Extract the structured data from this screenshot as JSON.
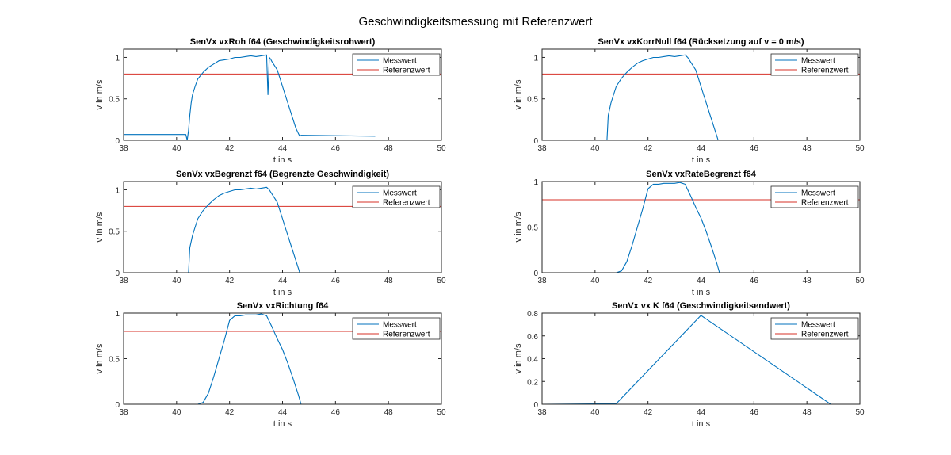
{
  "figure_title": "Geschwindigkeitsmessung mit Referenzwert",
  "colors": {
    "measured": "#0072bd",
    "reference": "#d73027",
    "axis": "#262626"
  },
  "chart_data": [
    {
      "type": "line",
      "title": "SenVx vxRoh f64 (Geschwindigkeitsrohwert)",
      "xlabel": "t in s",
      "ylabel": "v in m/s",
      "xlim": [
        38,
        50
      ],
      "ylim": [
        0,
        1.1
      ],
      "xticks": [
        38,
        40,
        42,
        44,
        46,
        48,
        50
      ],
      "yticks": [
        0,
        0.5,
        1
      ],
      "ytick_labels": [
        "0",
        "0.5",
        "1"
      ],
      "legend": [
        "Messwert",
        "Referenzwert"
      ],
      "legend_position": "top-right",
      "reference_value": 0.8,
      "series": [
        {
          "name": "Messwert",
          "x": [
            38,
            40.35,
            40.4,
            40.45,
            40.5,
            40.55,
            40.6,
            40.7,
            40.8,
            41,
            41.2,
            41.4,
            41.6,
            41.8,
            42,
            42.2,
            42.4,
            42.6,
            42.8,
            43,
            43.2,
            43.4,
            43.45,
            43.5,
            43.55,
            43.6,
            43.7,
            43.8,
            43.9,
            44,
            44.1,
            44.2,
            44.3,
            44.4,
            44.5,
            44.6,
            44.65,
            44.7,
            47.5
          ],
          "y": [
            0.07,
            0.07,
            0.0,
            0.12,
            0.3,
            0.45,
            0.55,
            0.65,
            0.74,
            0.82,
            0.88,
            0.92,
            0.96,
            0.97,
            0.98,
            1.0,
            1.0,
            1.01,
            1.02,
            1.01,
            1.02,
            1.03,
            0.55,
            1.0,
            0.98,
            0.95,
            0.9,
            0.85,
            0.75,
            0.65,
            0.55,
            0.45,
            0.35,
            0.25,
            0.15,
            0.08,
            0.05,
            0.06,
            0.05
          ]
        }
      ]
    },
    {
      "type": "line",
      "title": "SenVx vxKorrNull f64 (Rücksetzung auf v = 0 m/s)",
      "xlabel": "t in s",
      "ylabel": "v in m/s",
      "xlim": [
        38,
        50
      ],
      "ylim": [
        0,
        1.1
      ],
      "xticks": [
        38,
        40,
        42,
        44,
        46,
        48,
        50
      ],
      "yticks": [
        0,
        0.5,
        1
      ],
      "ytick_labels": [
        "0",
        "0.5",
        "1"
      ],
      "legend": [
        "Messwert",
        "Referenzwert"
      ],
      "legend_position": "top-right",
      "reference_value": 0.8,
      "series": [
        {
          "name": "Messwert",
          "x": [
            38,
            40.45,
            40.5,
            40.6,
            40.7,
            40.8,
            41,
            41.2,
            41.4,
            41.6,
            41.8,
            42,
            42.2,
            42.4,
            42.6,
            42.8,
            43,
            43.2,
            43.4,
            43.5,
            43.6,
            43.7,
            43.8,
            43.9,
            44,
            44.1,
            44.2,
            44.3,
            44.4,
            44.5,
            44.6,
            44.65,
            49.5
          ],
          "y": [
            0,
            0,
            0.3,
            0.45,
            0.55,
            0.65,
            0.75,
            0.82,
            0.88,
            0.93,
            0.96,
            0.98,
            1.0,
            1.0,
            1.01,
            1.02,
            1.01,
            1.02,
            1.03,
            1.0,
            0.95,
            0.9,
            0.85,
            0.75,
            0.65,
            0.55,
            0.45,
            0.35,
            0.25,
            0.15,
            0.05,
            0,
            0
          ]
        }
      ]
    },
    {
      "type": "line",
      "title": "SenVx vxBegrenzt f64 (Begrenzte Geschwindigkeit)",
      "xlabel": "t in s",
      "ylabel": "v in m/s",
      "xlim": [
        38,
        50
      ],
      "ylim": [
        0,
        1.1
      ],
      "xticks": [
        38,
        40,
        42,
        44,
        46,
        48,
        50
      ],
      "yticks": [
        0,
        0.5,
        1
      ],
      "ytick_labels": [
        "0",
        "0.5",
        "1"
      ],
      "legend": [
        "Messwert",
        "Referenzwert"
      ],
      "legend_position": "top-right",
      "reference_value": 0.8,
      "series": [
        {
          "name": "Messwert",
          "x": [
            38,
            40.45,
            40.5,
            40.6,
            40.7,
            40.8,
            41,
            41.2,
            41.4,
            41.6,
            41.8,
            42,
            42.2,
            42.4,
            42.6,
            42.8,
            43,
            43.2,
            43.4,
            43.5,
            43.6,
            43.7,
            43.8,
            43.9,
            44,
            44.1,
            44.2,
            44.3,
            44.4,
            44.5,
            44.6,
            44.65,
            47.5
          ],
          "y": [
            0,
            0,
            0.3,
            0.45,
            0.55,
            0.65,
            0.75,
            0.82,
            0.88,
            0.93,
            0.96,
            0.98,
            1.0,
            1.0,
            1.01,
            1.02,
            1.01,
            1.02,
            1.03,
            1.0,
            0.95,
            0.9,
            0.85,
            0.75,
            0.65,
            0.55,
            0.45,
            0.35,
            0.25,
            0.15,
            0.05,
            0,
            0
          ]
        }
      ]
    },
    {
      "type": "line",
      "title": "SenVx vxRateBegrenzt f64",
      "xlabel": "t in s",
      "ylabel": "v in m/s",
      "xlim": [
        38,
        50
      ],
      "ylim": [
        0,
        1.0
      ],
      "xticks": [
        38,
        40,
        42,
        44,
        46,
        48,
        50
      ],
      "yticks": [
        0,
        0.5,
        1
      ],
      "ytick_labels": [
        "0",
        "0.5",
        "1"
      ],
      "legend": [
        "Messwert",
        "Referenzwert"
      ],
      "legend_position": "top-right",
      "reference_value": 0.8,
      "series": [
        {
          "name": "Messwert",
          "x": [
            38,
            40.8,
            41,
            41.2,
            41.4,
            41.6,
            41.8,
            42,
            42.2,
            42.4,
            42.6,
            42.8,
            43,
            43.2,
            43.4,
            43.6,
            43.8,
            44,
            44.2,
            44.4,
            44.6,
            44.7,
            47.5
          ],
          "y": [
            0,
            0,
            0.02,
            0.12,
            0.3,
            0.5,
            0.7,
            0.92,
            0.97,
            0.97,
            0.98,
            0.98,
            0.98,
            0.99,
            0.97,
            0.85,
            0.72,
            0.6,
            0.45,
            0.28,
            0.1,
            0,
            0
          ]
        }
      ]
    },
    {
      "type": "line",
      "title": "SenVx vxRichtung f64",
      "xlabel": "t in s",
      "ylabel": "v in m/s",
      "xlim": [
        38,
        50
      ],
      "ylim": [
        0,
        1.0
      ],
      "xticks": [
        38,
        40,
        42,
        44,
        46,
        48,
        50
      ],
      "yticks": [
        0,
        0.5,
        1
      ],
      "ytick_labels": [
        "0",
        "0.5",
        "1"
      ],
      "legend": [
        "Messwert",
        "Referenzwert"
      ],
      "legend_position": "top-right",
      "reference_value": 0.8,
      "series": [
        {
          "name": "Messwert",
          "x": [
            38,
            40.8,
            41,
            41.2,
            41.4,
            41.6,
            41.8,
            42,
            42.2,
            42.4,
            42.6,
            42.8,
            43,
            43.2,
            43.4,
            43.6,
            43.8,
            44,
            44.2,
            44.4,
            44.6,
            44.7,
            47.5
          ],
          "y": [
            0,
            0,
            0.02,
            0.12,
            0.3,
            0.5,
            0.7,
            0.92,
            0.97,
            0.97,
            0.98,
            0.98,
            0.98,
            0.99,
            0.97,
            0.85,
            0.72,
            0.6,
            0.45,
            0.28,
            0.1,
            0,
            0
          ]
        }
      ]
    },
    {
      "type": "line",
      "title": "SenVx vx K f64 (Geschwindigkeitsendwert)",
      "xlabel": "t in s",
      "ylabel": "v in m/s",
      "xlim": [
        38,
        50
      ],
      "ylim": [
        0,
        0.8
      ],
      "xticks": [
        38,
        40,
        42,
        44,
        46,
        48,
        50
      ],
      "yticks": [
        0,
        0.2,
        0.4,
        0.6,
        0.8
      ],
      "ytick_labels": [
        "0",
        "0.2",
        "0.4",
        "0.6",
        "0.8"
      ],
      "legend": [
        "Messwert",
        "Referenzwert"
      ],
      "legend_position": "top-right",
      "reference_value": 0.8,
      "series": [
        {
          "name": "Messwert",
          "x": [
            38,
            40.8,
            44,
            48.9
          ],
          "y": [
            0,
            0.005,
            0.78,
            0
          ]
        }
      ]
    }
  ]
}
